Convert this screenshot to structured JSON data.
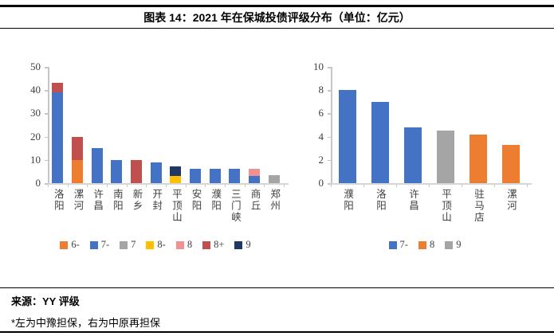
{
  "header": {
    "title": "图表 14：2021 年在保城投债评级分布（单位：亿元）"
  },
  "footer": {
    "source": "来源：YY 评级",
    "note": "*左为中豫担保，右为中原再担保"
  },
  "palette": {
    "blue": "#4472C4",
    "orange": "#ED7D31",
    "gray": "#A5A5A5",
    "yellow": "#FFC000",
    "pink": "#F1928E",
    "brick": "#C0504D",
    "navy": "#1F3864",
    "axis_line": "#C6C6C6",
    "axis_text": "#404040"
  },
  "chart_data": [
    {
      "type": "bar",
      "stacked": true,
      "title": "",
      "xlabel": "",
      "ylabel": "",
      "ylim": [
        0,
        50
      ],
      "yticks": [
        0,
        10,
        20,
        30,
        40,
        50
      ],
      "grid": false,
      "legend_position": "bottom",
      "legend": [
        "6-",
        "7-",
        "7",
        "8-",
        "8",
        "8+",
        "9"
      ],
      "categories": [
        "洛阳",
        "漯河",
        "许昌",
        "南阳",
        "新乡",
        "开封",
        "平顶山",
        "安阳",
        "濮阳",
        "三门峡",
        "商丘",
        "郑州"
      ],
      "series": [
        {
          "name": "6-",
          "color": "#ED7D31",
          "values": [
            0,
            10,
            0,
            0,
            0,
            0,
            0,
            0,
            0,
            0,
            0,
            0
          ]
        },
        {
          "name": "7-",
          "color": "#4472C4",
          "values": [
            39,
            0,
            15,
            10,
            0,
            9,
            0,
            6,
            6,
            6,
            3,
            0
          ]
        },
        {
          "name": "7",
          "color": "#A5A5A5",
          "values": [
            0,
            0,
            0,
            0,
            0,
            0,
            0,
            0,
            0,
            0,
            0,
            3.5
          ]
        },
        {
          "name": "8-",
          "color": "#FFC000",
          "values": [
            0,
            0,
            0,
            0,
            0,
            0,
            3,
            0,
            0,
            0,
            0,
            0
          ]
        },
        {
          "name": "8",
          "color": "#F1928E",
          "values": [
            0,
            0,
            0,
            0,
            0,
            0,
            0,
            0,
            0,
            0,
            3,
            0
          ]
        },
        {
          "name": "8+",
          "color": "#C0504D",
          "values": [
            4,
            10,
            0,
            0,
            10,
            0,
            0,
            0,
            0,
            0,
            0,
            0
          ]
        },
        {
          "name": "9",
          "color": "#1F3864",
          "values": [
            0,
            0,
            0,
            0,
            0,
            0,
            4.2,
            0,
            0,
            0,
            0,
            0
          ]
        }
      ]
    },
    {
      "type": "bar",
      "stacked": false,
      "title": "",
      "xlabel": "",
      "ylabel": "",
      "ylim": [
        0,
        10
      ],
      "yticks": [
        0,
        2,
        4,
        6,
        8,
        10
      ],
      "grid": false,
      "legend_position": "bottom",
      "legend": [
        "7-",
        "8",
        "9"
      ],
      "categories": [
        "濮阳",
        "洛阳",
        "许昌",
        "平顶山",
        "驻马店",
        "漯河"
      ],
      "series": [
        {
          "name": "7-",
          "color": "#4472C4",
          "values": [
            8,
            7,
            4.8,
            0,
            0,
            0
          ]
        },
        {
          "name": "8",
          "color": "#ED7D31",
          "values": [
            0,
            0,
            0,
            0,
            4.2,
            3.3
          ]
        },
        {
          "name": "9",
          "color": "#A5A5A5",
          "values": [
            0,
            0,
            0,
            4.5,
            0,
            0
          ]
        }
      ]
    }
  ]
}
